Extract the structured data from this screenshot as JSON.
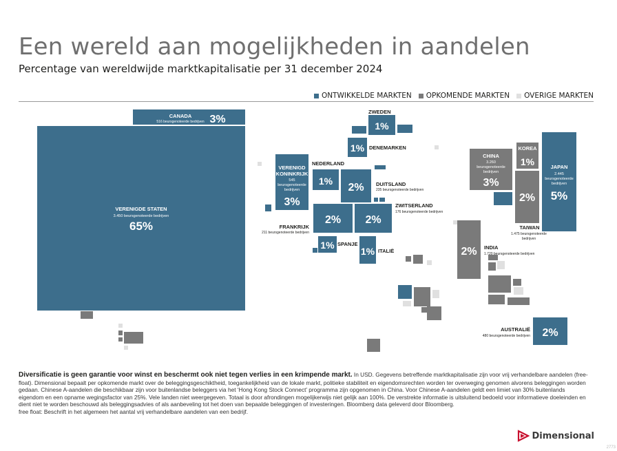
{
  "title": "Een wereld aan mogelijkheden in aandelen",
  "subtitle": "Percentage van wereldwijde marktkapitalisatie per 31 december 2024",
  "legend": [
    {
      "label": "ONTWIKKELDE MARKTEN",
      "color": "#3d6e8c"
    },
    {
      "label": "OPKOMENDE MARKTEN",
      "color": "#7a7a7a"
    },
    {
      "label": "OVERIGE MARKTEN",
      "color": "#e0e0e0"
    }
  ],
  "chart_data": {
    "type": "treemap",
    "title": "Een wereld aan mogelijkheden in aandelen",
    "subtitle": "Percentage van wereldwijde marktkapitalisatie per 31 december 2024",
    "categories": [
      "Verenigde Staten",
      "Canada",
      "Japan",
      "Verenigd Koninkrijk",
      "China",
      "Frankrijk",
      "Duitsland",
      "Zwitserland",
      "Taiwan",
      "India",
      "Australië",
      "Nederland",
      "Zweden",
      "Denemarken",
      "Korea",
      "Spanje",
      "Italië"
    ],
    "series": [
      {
        "name": "ONTWIKKELDE MARKTEN",
        "values": [
          65,
          3,
          5,
          3,
          null,
          2,
          2,
          2,
          null,
          null,
          2,
          1,
          1,
          1,
          null,
          1,
          1
        ]
      },
      {
        "name": "OPKOMENDE MARKTEN",
        "values": [
          null,
          null,
          null,
          null,
          3,
          null,
          null,
          null,
          2,
          2,
          null,
          null,
          null,
          null,
          1,
          null,
          null
        ]
      }
    ],
    "countries": [
      {
        "name": "VERENIGDE STATEN",
        "pct": "65%",
        "value": 65,
        "listed": "3.450 beursgenoteerde bedrijven",
        "group": "dev"
      },
      {
        "name": "CANADA",
        "pct": "3%",
        "value": 3,
        "listed": "516 beursgenoteerde bedrijven",
        "group": "dev"
      },
      {
        "name": "JAPAN",
        "pct": "5%",
        "value": 5,
        "listed": "2.445 beursgenoteerde bedrijven",
        "group": "dev"
      },
      {
        "name": "VERENIGD KONINKRIJK",
        "pct": "3%",
        "value": 3,
        "listed": "545 beursgenoteerde bedrijven",
        "group": "dev"
      },
      {
        "name": "CHINA",
        "pct": "3%",
        "value": 3,
        "listed": "3.260 beursgenoteerde bedrijven",
        "group": "em"
      },
      {
        "name": "FRANKRIJK",
        "pct": "2%",
        "value": 2,
        "listed": "211 beursgenoteerde bedrijven",
        "group": "dev"
      },
      {
        "name": "DUITSLAND",
        "pct": "2%",
        "value": 2,
        "listed": "235 beursgenoteerde bedrijven",
        "group": "dev"
      },
      {
        "name": "ZWITSERLAND",
        "pct": "2%",
        "value": 2,
        "listed": "176 beursgenoteerde bedrijven",
        "group": "dev"
      },
      {
        "name": "TAIWAN",
        "pct": "2%",
        "value": 2,
        "listed": "1.475 beursgenoteerde bedrijven",
        "group": "em"
      },
      {
        "name": "INDIA",
        "pct": "2%",
        "value": 2,
        "listed": "1.720 beursgenoteerde bedrijven",
        "group": "em"
      },
      {
        "name": "AUSTRALIË",
        "pct": "2%",
        "value": 2,
        "listed": "480 beursgenoteerde bedrijven",
        "group": "dev"
      },
      {
        "name": "NEDERLAND",
        "pct": "1%",
        "value": 1,
        "group": "dev"
      },
      {
        "name": "ZWEDEN",
        "pct": "1%",
        "value": 1,
        "group": "dev"
      },
      {
        "name": "DENEMARKEN",
        "pct": "1%",
        "value": 1,
        "group": "dev"
      },
      {
        "name": "KOREA",
        "pct": "1%",
        "value": 1,
        "group": "em"
      },
      {
        "name": "SPANJE",
        "pct": "1%",
        "value": 1,
        "group": "dev"
      },
      {
        "name": "ITALIË",
        "pct": "1%",
        "value": 1,
        "group": "dev"
      }
    ]
  },
  "footer": {
    "bold": "Diversificatie is geen garantie voor winst en beschermt ook niet tegen verlies in een krimpende markt.",
    "text": " In USD. Gegevens betreffende marktkapitalisatie zijn voor vrij verhandelbare aandelen (free-float). Dimensional bepaalt per opkomende markt over de beleggingsgeschiktheid, toegankelijkheid van de lokale markt, politieke stabiliteit en eigendomsrechten worden ter overweging genomen alvorens beleggingen worden gedaan. Chinese A-aandelen die beschikbaar zijn voor buitenlandse beleggers via het ‘Hong Kong Stock Connect’ programma zijn opgenomen in China. Voor Chinese A-aandelen geldt een limiet van 30% buitenlands eigendom en een opname wegingsfactor van 25%. Vele landen niet weergegeven. Totaal is door afrondingen mogelijkerwijs niet gelijk aan 100%. De verstrekte informatie is uitsluitend bedoeld voor informatieve doeleinden en dient niet te worden beschouwd als beleggingsadvies of als aanbeveling tot het doen van bepaalde beleggingen of investeringen. Bloomberg data geleverd door Bloomberg.",
    "note": "free float: Beschrift in het algemeen het aantal vrij verhandelbare aandelen van een bedrijf."
  },
  "logo": "Dimensional",
  "page_number": "2773"
}
